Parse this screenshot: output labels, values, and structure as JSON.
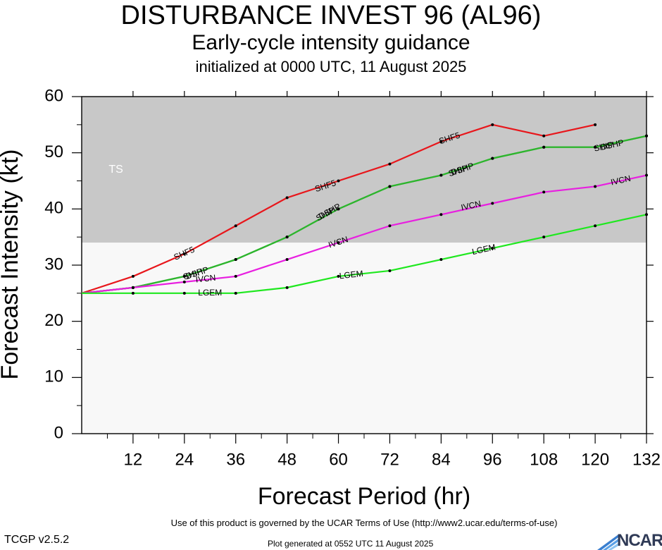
{
  "header": {
    "title": "DISTURBANCE INVEST 96 (AL96)",
    "subtitle": "Early-cycle intensity guidance",
    "init": "initialized at 0000 UTC, 11 August 2025"
  },
  "footer": {
    "terms": "Use of this product is governed by the UCAR Terms of Use (http://www2.ucar.edu/terms-of-use)",
    "version": "TCGP v2.5.2",
    "generated": "Plot generated at 0552 UTC   11 August 2025",
    "logo_text": "NCAR"
  },
  "chart_data": {
    "type": "line",
    "title": "DISTURBANCE INVEST 96 (AL96)",
    "xlabel": "Forecast Period (hr)",
    "ylabel": "Forecast Intensity (kt)",
    "xlim": [
      0,
      132
    ],
    "ylim": [
      0,
      60
    ],
    "xticks": [
      12,
      24,
      36,
      48,
      60,
      72,
      84,
      96,
      108,
      120,
      132
    ],
    "yticks": [
      0,
      10,
      20,
      30,
      40,
      50,
      60
    ],
    "grid": false,
    "bands": [
      {
        "label": "TS",
        "from": 34,
        "to": 60,
        "color": "#c8c8c8"
      },
      {
        "label": "",
        "from": 0,
        "to": 34,
        "color": "#f8f8f8"
      }
    ],
    "series": [
      {
        "name": "SHF5",
        "color": "#e8161b",
        "x": [
          0,
          12,
          24,
          36,
          48,
          60,
          72,
          84,
          96,
          108,
          120
        ],
        "y": [
          25,
          28,
          32,
          37,
          42,
          45,
          48,
          52,
          55,
          53,
          55
        ],
        "labels": [
          {
            "text": "SHF5",
            "x": 24,
            "y": 32
          },
          {
            "text": "SHF5",
            "x": 57,
            "y": 44
          },
          {
            "text": "SHF5",
            "x": 86,
            "y": 52.5
          }
        ]
      },
      {
        "name": "DSHP",
        "color": "#2db52d",
        "x": [
          0,
          12,
          24,
          36,
          48,
          60,
          72,
          84,
          96,
          108,
          120,
          132
        ],
        "y": [
          25,
          26,
          28,
          31,
          35,
          40,
          44,
          46,
          49,
          51,
          51,
          53
        ],
        "labels": [
          {
            "text": "DSHP",
            "x": 27,
            "y": 28.5
          },
          {
            "text": "DSHP",
            "x": 58,
            "y": 39.5
          },
          {
            "text": "DSHP",
            "x": 89,
            "y": 47
          },
          {
            "text": "DSHP",
            "x": 124,
            "y": 51.3
          }
        ]
      },
      {
        "name": "SHIP",
        "color": "#2db52d",
        "x": [
          0,
          12,
          24,
          36,
          48,
          60,
          72,
          84,
          96,
          108,
          120,
          132
        ],
        "y": [
          25,
          26,
          28,
          31,
          35,
          40,
          44,
          46,
          49,
          51,
          51,
          53
        ],
        "labels": [
          {
            "text": "SHIP",
            "x": 26,
            "y": 28.3
          },
          {
            "text": "SHIP",
            "x": 57,
            "y": 39
          },
          {
            "text": "SHIP",
            "x": 88,
            "y": 46.7
          },
          {
            "text": "SHIP",
            "x": 122,
            "y": 51
          }
        ]
      },
      {
        "name": "IVCN",
        "color": "#e81fe0",
        "x": [
          0,
          12,
          24,
          36,
          48,
          60,
          72,
          84,
          96,
          108,
          120,
          132
        ],
        "y": [
          25,
          26,
          27,
          28,
          31,
          34,
          37,
          39,
          41,
          43,
          44,
          46
        ],
        "labels": [
          {
            "text": "IVCN",
            "x": 29,
            "y": 27.5
          },
          {
            "text": "IVCN",
            "x": 60,
            "y": 34
          },
          {
            "text": "IVCN",
            "x": 91,
            "y": 40.5
          },
          {
            "text": "IVCN",
            "x": 126,
            "y": 45
          }
        ]
      },
      {
        "name": "LGEM",
        "color": "#1fe81f",
        "x": [
          0,
          12,
          24,
          36,
          48,
          60,
          72,
          84,
          96,
          108,
          120,
          132
        ],
        "y": [
          25,
          25,
          25,
          25,
          26,
          28,
          29,
          31,
          33,
          35,
          37,
          39
        ],
        "labels": [
          {
            "text": "LGEM",
            "x": 30,
            "y": 25
          },
          {
            "text": "LGEM",
            "x": 63,
            "y": 28.2
          },
          {
            "text": "LGEM",
            "x": 94,
            "y": 32.7
          }
        ]
      }
    ],
    "band_label_pos": {
      "x": 8,
      "y": 47
    }
  }
}
